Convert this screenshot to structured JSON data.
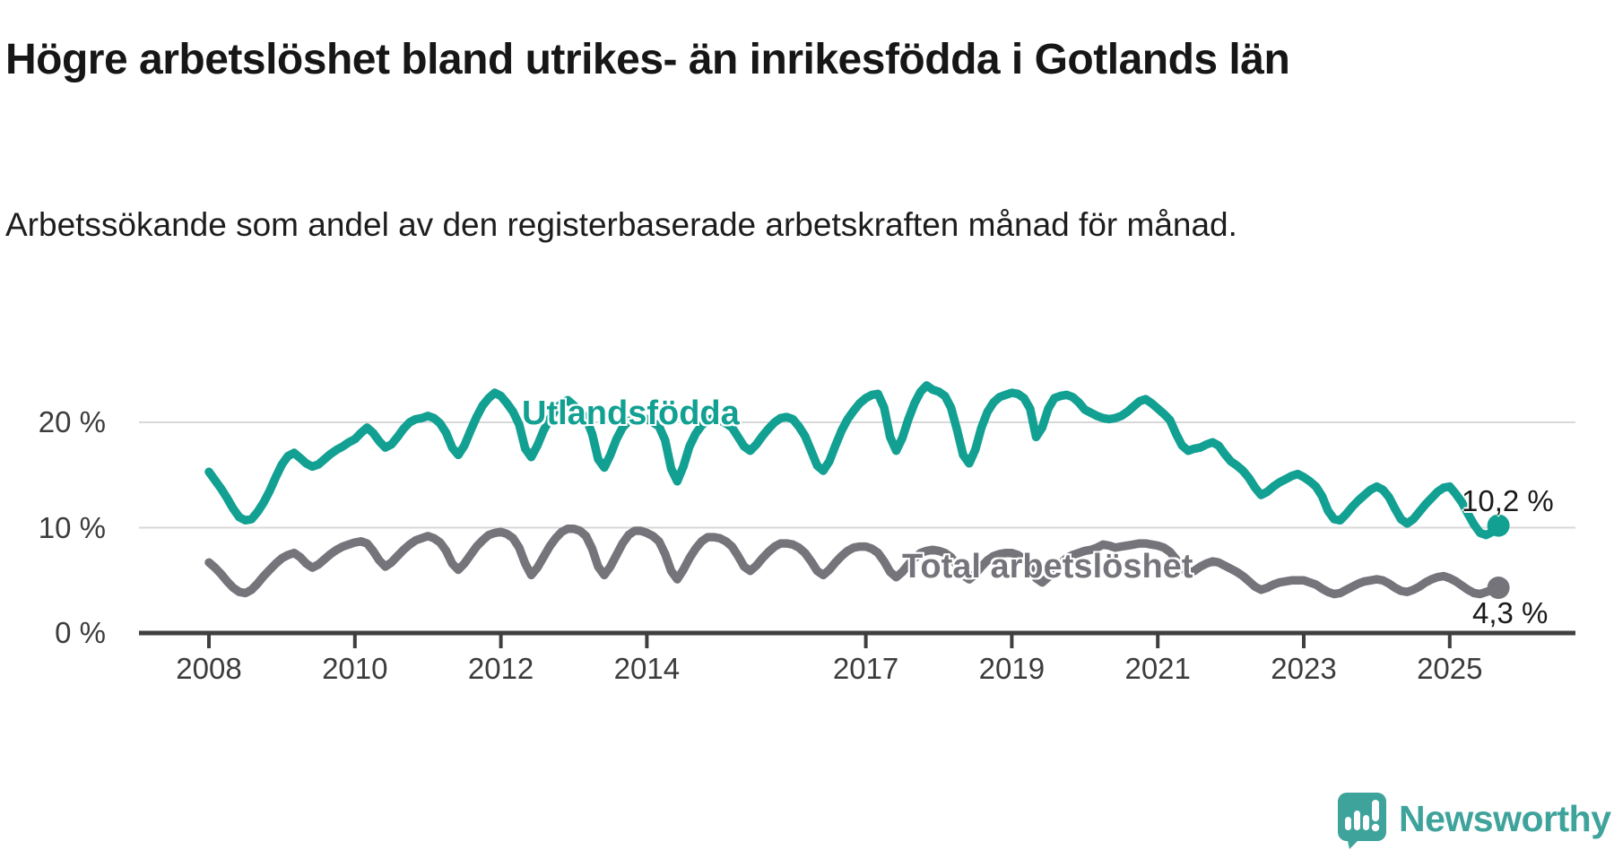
{
  "header": {
    "title": "Högre arbetslöshet bland utrikes- än inrikesfödda i Gotlands län",
    "subtitle": "Arbetssökande som andel av den registerbaserade arbetskraften månad för månad."
  },
  "chart_data": {
    "type": "line",
    "unit": "percent of registered labour force",
    "frequency": "monthly",
    "start": "2008-01",
    "end": "2025-09",
    "grid": "horizontal",
    "legend_position": "inline-labels",
    "x_axis": {
      "ticks": [
        {
          "label": "2008",
          "year": 2008
        },
        {
          "label": "2010",
          "year": 2010
        },
        {
          "label": "2012",
          "year": 2012
        },
        {
          "label": "2014",
          "year": 2014
        },
        {
          "label": "2017",
          "year": 2017
        },
        {
          "label": "2019",
          "year": 2019
        },
        {
          "label": "2021",
          "year": 2021
        },
        {
          "label": "2023",
          "year": 2023
        },
        {
          "label": "2025",
          "year": 2025
        }
      ],
      "xlim": [
        2008.0,
        2025.9
      ]
    },
    "y_axis": {
      "ticks": [
        {
          "label": "0 %",
          "value": 0
        },
        {
          "label": "10 %",
          "value": 10
        },
        {
          "label": "20 %",
          "value": 20
        }
      ],
      "ylim": [
        0,
        24.5
      ]
    },
    "series": [
      {
        "name": "Total arbetslöshet",
        "color": "#76747b",
        "end_value": 4.3,
        "end_label": "4,3 %",
        "values": [
          6.7,
          6.2,
          5.6,
          4.9,
          4.3,
          3.9,
          3.8,
          4.1,
          4.7,
          5.4,
          6.0,
          6.6,
          7.1,
          7.4,
          7.6,
          7.2,
          6.6,
          6.2,
          6.5,
          7.0,
          7.5,
          7.9,
          8.2,
          8.4,
          8.6,
          8.7,
          8.5,
          7.8,
          6.9,
          6.3,
          6.7,
          7.3,
          7.9,
          8.4,
          8.8,
          9.0,
          9.2,
          9.0,
          8.6,
          7.8,
          6.6,
          6.0,
          6.6,
          7.4,
          8.2,
          8.8,
          9.3,
          9.5,
          9.6,
          9.4,
          9.0,
          8.1,
          6.6,
          5.5,
          6.2,
          7.2,
          8.2,
          9.0,
          9.6,
          9.9,
          9.9,
          9.7,
          9.2,
          8.0,
          6.3,
          5.5,
          6.3,
          7.4,
          8.5,
          9.3,
          9.7,
          9.7,
          9.5,
          9.2,
          8.7,
          7.5,
          5.9,
          5.1,
          6.0,
          7.1,
          8.0,
          8.7,
          9.1,
          9.1,
          9.0,
          8.7,
          8.2,
          7.3,
          6.3,
          5.9,
          6.4,
          7.1,
          7.7,
          8.2,
          8.5,
          8.5,
          8.4,
          8.1,
          7.6,
          6.8,
          5.9,
          5.5,
          6.0,
          6.7,
          7.3,
          7.8,
          8.1,
          8.2,
          8.2,
          8.0,
          7.6,
          6.8,
          5.8,
          5.3,
          5.8,
          6.5,
          7.1,
          7.6,
          7.8,
          7.9,
          7.8,
          7.6,
          7.2,
          6.4,
          5.5,
          5.1,
          5.6,
          6.3,
          6.9,
          7.3,
          7.5,
          7.6,
          7.6,
          7.4,
          7.0,
          6.2,
          5.2,
          4.8,
          5.3,
          6.0,
          6.6,
          7.1,
          7.4,
          7.6,
          7.8,
          7.9,
          8.1,
          8.4,
          8.3,
          8.1,
          8.2,
          8.3,
          8.4,
          8.5,
          8.5,
          8.4,
          8.3,
          8.1,
          7.7,
          7.0,
          6.2,
          5.7,
          5.9,
          6.3,
          6.6,
          6.8,
          6.7,
          6.4,
          6.1,
          5.8,
          5.4,
          4.9,
          4.4,
          4.1,
          4.3,
          4.6,
          4.8,
          4.9,
          5.0,
          5.0,
          5.0,
          4.8,
          4.6,
          4.2,
          3.9,
          3.7,
          3.8,
          4.1,
          4.4,
          4.7,
          4.9,
          5.0,
          5.1,
          5.0,
          4.7,
          4.3,
          4.0,
          3.9,
          4.1,
          4.4,
          4.8,
          5.1,
          5.3,
          5.4,
          5.2,
          4.9,
          4.5,
          4.1,
          3.8,
          3.7,
          3.9,
          4.1,
          4.3
        ]
      },
      {
        "name": "Utlandsfödda",
        "color": "#12a092",
        "end_value": 10.2,
        "end_label": "10,2 %",
        "values": [
          15.3,
          14.5,
          13.7,
          12.8,
          11.8,
          11.0,
          10.7,
          10.8,
          11.5,
          12.4,
          13.5,
          14.8,
          16.0,
          16.8,
          17.1,
          16.6,
          16.1,
          15.8,
          16.0,
          16.5,
          17.0,
          17.4,
          17.7,
          18.1,
          18.4,
          19.0,
          19.5,
          19.0,
          18.2,
          17.6,
          17.9,
          18.6,
          19.4,
          20.0,
          20.3,
          20.4,
          20.6,
          20.4,
          19.9,
          19.0,
          17.6,
          16.9,
          17.8,
          19.2,
          20.5,
          21.6,
          22.3,
          22.8,
          22.5,
          21.8,
          21.0,
          19.8,
          17.5,
          16.7,
          17.8,
          19.2,
          20.3,
          21.2,
          21.8,
          22.1,
          21.6,
          21.0,
          20.4,
          18.9,
          16.5,
          15.7,
          16.9,
          18.4,
          19.5,
          20.1,
          20.4,
          20.5,
          20.3,
          20.0,
          19.6,
          18.3,
          15.6,
          14.4,
          15.8,
          17.7,
          18.9,
          19.7,
          20.2,
          20.4,
          20.2,
          19.9,
          19.5,
          18.6,
          17.7,
          17.3,
          17.9,
          18.7,
          19.4,
          20.0,
          20.4,
          20.5,
          20.3,
          19.6,
          18.7,
          17.3,
          15.9,
          15.4,
          16.3,
          17.8,
          19.2,
          20.3,
          21.1,
          21.8,
          22.3,
          22.6,
          22.7,
          21.4,
          18.6,
          17.3,
          18.5,
          20.3,
          21.8,
          22.9,
          23.5,
          23.1,
          22.9,
          22.5,
          21.4,
          19.3,
          16.9,
          16.1,
          17.4,
          19.5,
          21.0,
          21.9,
          22.4,
          22.6,
          22.8,
          22.7,
          22.3,
          21.3,
          18.6,
          19.5,
          21.3,
          22.3,
          22.5,
          22.6,
          22.4,
          21.9,
          21.2,
          20.9,
          20.6,
          20.4,
          20.3,
          20.4,
          20.6,
          21.0,
          21.5,
          22.0,
          22.2,
          21.8,
          21.3,
          20.8,
          20.2,
          18.9,
          17.8,
          17.3,
          17.5,
          17.6,
          17.9,
          18.1,
          17.8,
          17.0,
          16.3,
          15.9,
          15.4,
          14.7,
          13.8,
          13.1,
          13.4,
          13.9,
          14.3,
          14.6,
          14.9,
          15.1,
          14.8,
          14.4,
          13.9,
          13.0,
          11.6,
          10.8,
          10.7,
          11.3,
          12.0,
          12.6,
          13.1,
          13.6,
          13.9,
          13.6,
          12.9,
          11.8,
          10.8,
          10.4,
          10.8,
          11.5,
          12.2,
          12.8,
          13.4,
          13.8,
          13.9,
          13.2,
          12.4,
          11.3,
          10.3,
          9.5,
          9.3,
          9.6,
          10.2
        ]
      }
    ]
  },
  "branding": {
    "logo_text": "Newsworthy",
    "logo_color": "#3ea39b",
    "icon": "newsworthy-speech-bubble-bar-chart-icon"
  }
}
